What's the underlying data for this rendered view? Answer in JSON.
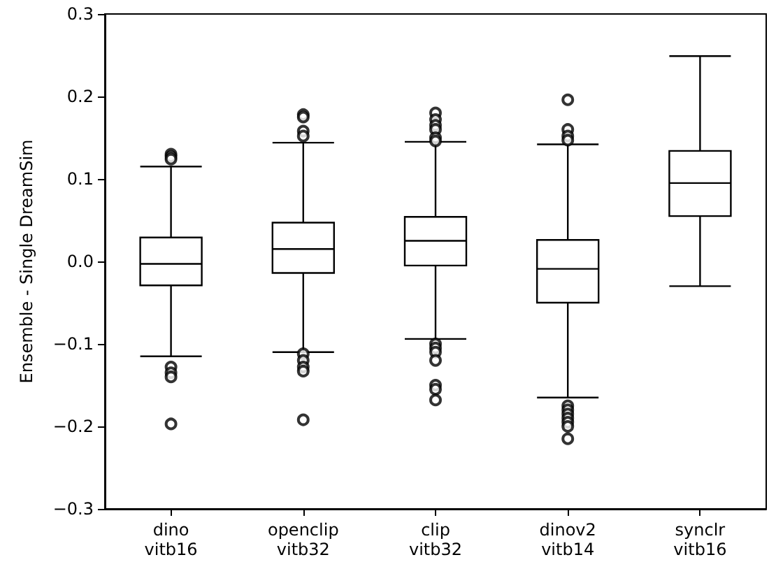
{
  "chart_data": {
    "type": "box",
    "ylabel": "Ensemble - Single DreamSim",
    "categories": [
      "dino\nvitb16",
      "openclip\nvitb32",
      "clip\nvitb32",
      "dinov2\nvitb14",
      "synclr\nvitb16"
    ],
    "boxes": [
      {
        "low": -0.115,
        "q1": -0.029,
        "median": -0.003,
        "q3": 0.029,
        "high": 0.115,
        "outliers": [
          0.13,
          0.127,
          0.124,
          -0.128,
          -0.135,
          -0.14,
          -0.197
        ]
      },
      {
        "low": -0.11,
        "q1": -0.014,
        "median": 0.015,
        "q3": 0.047,
        "high": 0.144,
        "outliers": [
          0.178,
          0.175,
          0.158,
          0.152,
          -0.112,
          -0.12,
          -0.128,
          -0.133,
          -0.192
        ]
      },
      {
        "low": -0.094,
        "q1": -0.005,
        "median": 0.025,
        "q3": 0.054,
        "high": 0.145,
        "outliers": [
          0.18,
          0.172,
          0.165,
          0.16,
          0.15,
          0.146,
          -0.1,
          -0.105,
          -0.11,
          -0.12,
          -0.15,
          -0.155,
          -0.168
        ]
      },
      {
        "low": -0.165,
        "q1": -0.05,
        "median": -0.009,
        "q3": 0.026,
        "high": 0.142,
        "outliers": [
          0.196,
          0.16,
          0.152,
          0.147,
          -0.175,
          -0.18,
          -0.185,
          -0.19,
          -0.195,
          -0.2,
          -0.215
        ]
      },
      {
        "low": -0.03,
        "q1": 0.055,
        "median": 0.095,
        "q3": 0.134,
        "high": 0.249
      }
    ],
    "color": "#000000",
    "ylim": [
      -0.3,
      0.3
    ],
    "yticks": [
      {
        "value": -0.3,
        "label": "−0.3"
      },
      {
        "value": -0.2,
        "label": "−0.2"
      },
      {
        "value": -0.1,
        "label": "−0.1"
      },
      {
        "value": 0,
        "label": "0.0"
      },
      {
        "value": 0.1,
        "label": "0.1"
      },
      {
        "value": 0.2,
        "label": "0.2"
      },
      {
        "value": 0.3,
        "label": "0.3"
      }
    ],
    "grid": false
  }
}
